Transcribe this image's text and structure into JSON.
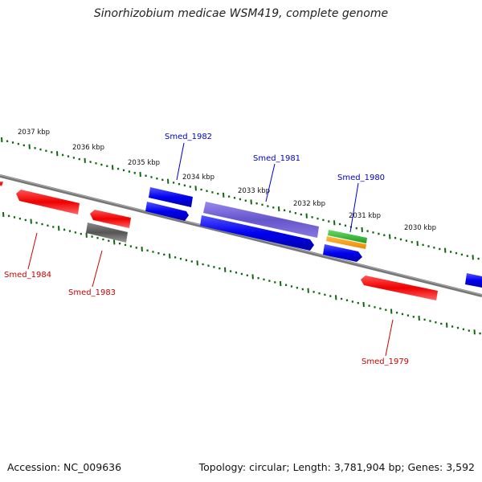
{
  "title": "Sinorhizobium medicae WSM419, complete genome",
  "accession": "Accession: NC_009636",
  "summary": "Topology: circular; Length: 3,781,904 bp; Genes: 3,592",
  "colors": {
    "forward": "#0000ee",
    "reverse": "#ee0000",
    "purple": "#7766cc",
    "green": "#33bb33",
    "orange": "#ff9900",
    "gray": "#666666",
    "tick": "#116611"
  },
  "ticks": [
    {
      "label": "2037 kbp"
    },
    {
      "label": "2036 kbp"
    },
    {
      "label": "2035 kbp"
    },
    {
      "label": "2034 kbp"
    },
    {
      "label": "2033 kbp"
    },
    {
      "label": "2032 kbp"
    },
    {
      "label": "2031 kbp"
    },
    {
      "label": "2030 kbp"
    }
  ],
  "genes": [
    {
      "label": "Smed_1984",
      "color": "#cc0000"
    },
    {
      "label": "Smed_1983",
      "color": "#cc0000"
    },
    {
      "label": "Smed_1982",
      "color": "#0000cc"
    },
    {
      "label": "Smed_1981",
      "color": "#0000cc"
    },
    {
      "label": "Smed_1980",
      "color": "#0000cc"
    },
    {
      "label": "Smed_1979",
      "color": "#cc0000"
    }
  ]
}
